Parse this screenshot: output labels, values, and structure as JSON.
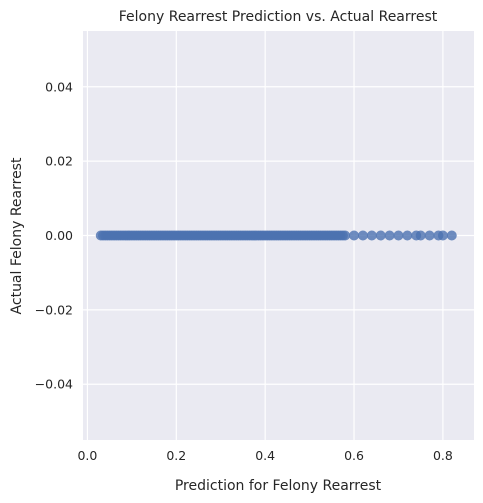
{
  "chart_data": {
    "type": "scatter",
    "title": "Felony Rearrest Prediction vs. Actual Rearrest",
    "xlabel": "Prediction for Felony Rearrest",
    "ylabel": "Actual Felony Rearrest",
    "xlim": [
      -0.01,
      0.87
    ],
    "ylim": [
      -0.055,
      0.055
    ],
    "xticks": [
      0.0,
      0.2,
      0.4,
      0.6,
      0.8
    ],
    "xtick_labels": [
      "0.0",
      "0.2",
      "0.4",
      "0.6",
      "0.8"
    ],
    "yticks": [
      -0.04,
      -0.02,
      0.0,
      0.02,
      0.04
    ],
    "ytick_labels": [
      "−0.04",
      "−0.02",
      "0.00",
      "0.02",
      "0.04"
    ],
    "grid": true,
    "series": [
      {
        "color": "#4c72b0",
        "x_range_dense": [
          0.03,
          0.58
        ],
        "x_sparse": [
          0.6,
          0.62,
          0.64,
          0.66,
          0.68,
          0.7,
          0.72,
          0.74,
          0.75,
          0.77,
          0.79,
          0.8,
          0.82
        ],
        "y": 0.0
      }
    ]
  }
}
